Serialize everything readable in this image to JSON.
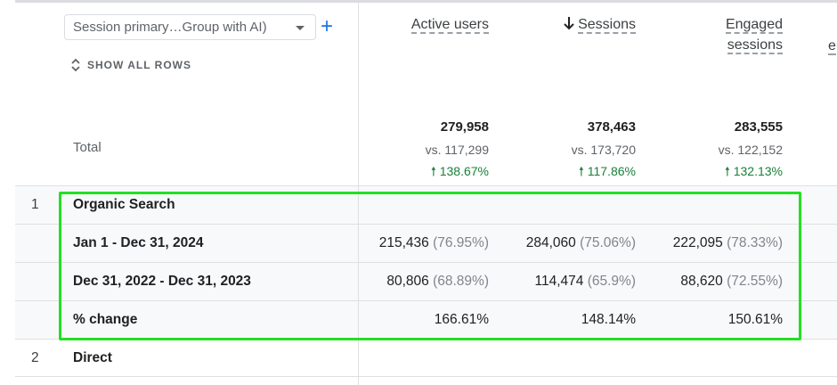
{
  "dimension_selector": {
    "label": "Session primary…Group with AI)"
  },
  "add_dimension": "+",
  "show_all_rows": "SHOW ALL ROWS",
  "columns": [
    {
      "label": "Active users",
      "sorted": false
    },
    {
      "label": "Sessions",
      "sorted": true,
      "sort_direction": "descending"
    },
    {
      "label_line1": "Engaged",
      "label_line2": "sessions"
    }
  ],
  "total": {
    "label": "Total",
    "values": [
      "279,958",
      "378,463",
      "283,555"
    ],
    "compare": [
      "vs. 117,299",
      "vs. 173,720",
      "vs. 122,152"
    ],
    "change": [
      "138.67%",
      "117.86%",
      "132.13%"
    ]
  },
  "rows": [
    {
      "index": "1",
      "label": "Organic Search",
      "sub": [
        {
          "label": "Jan 1 - Dec 31, 2024",
          "values": [
            [
              "215,436",
              "(76.95%)"
            ],
            [
              "284,060",
              "(75.06%)"
            ],
            [
              "222,095",
              "(78.33%)"
            ]
          ]
        },
        {
          "label": "Dec 31, 2022 - Dec 31, 2023",
          "values": [
            [
              "80,806",
              "(68.89%)"
            ],
            [
              "114,474",
              "(65.9%)"
            ],
            [
              "88,620",
              "(72.55%)"
            ]
          ]
        },
        {
          "label": "% change",
          "values": [
            "166.61%",
            "148.14%",
            "150.61%"
          ]
        }
      ]
    },
    {
      "index": "2",
      "label": "Direct"
    }
  ],
  "colors": {
    "accent": "#1a73e8",
    "positive": "#188038",
    "highlight": "#22e022"
  }
}
